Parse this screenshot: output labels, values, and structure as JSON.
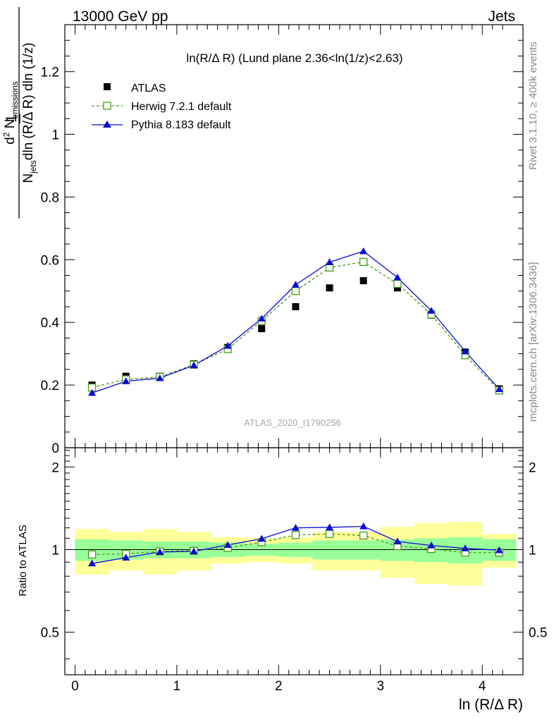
{
  "header": {
    "left": "13000 GeV pp",
    "right": "Jets"
  },
  "side_text": {
    "rivet": "Rivet 3.1.10, ≥ 400k events",
    "mcplots": "mcplots.cern.ch [arXiv:1306.3436]"
  },
  "colors": {
    "atlas": "#000000",
    "herwig": "#4a9a1a",
    "pythia": "#0a0ad8",
    "band_inner": "#99ff99",
    "band_outer": "#ffff99"
  },
  "chart_data": [
    {
      "type": "scatter",
      "panel": "main",
      "title": "ln(R/Δ R) (Lund plane 2.36<ln(1/z)<2.63)",
      "ylabel": "1/N_jets d²N_emissions / dln(R/ΔR) dln(1/z)",
      "ylabel_parts": {
        "frac_num": "1",
        "num_lead": "d",
        "num_sup": "2",
        "num_main": " N",
        "num_sub": "emissions",
        "den_main_a": "N",
        "den_sub": "jets",
        "den_main_b": "dln (R/Δ R) dln (1/z)"
      },
      "watermark": "ATLAS_2020_I1790256",
      "xlim": [
        -0.1,
        4.4
      ],
      "ylim": [
        0,
        1.35
      ],
      "yticks": [
        0,
        0.2,
        0.4,
        0.6,
        0.8,
        1,
        1.2
      ],
      "ytick_labels": [
        "0",
        "0.2",
        "0.4",
        "0.6",
        "0.8",
        "1",
        "1.2"
      ],
      "legend": [
        {
          "key": "atlas",
          "label": "ATLAS"
        },
        {
          "key": "herwig",
          "label": "Herwig 7.2.1 default"
        },
        {
          "key": "pythia",
          "label": "Pythia 8.183 default"
        }
      ],
      "x": [
        0.167,
        0.5,
        0.833,
        1.167,
        1.5,
        1.833,
        2.167,
        2.5,
        2.833,
        3.167,
        3.5,
        3.833,
        4.167
      ],
      "series": [
        {
          "name": "ATLAS",
          "values": [
            0.2,
            0.228,
            0.228,
            0.268,
            0.32,
            0.38,
            0.45,
            0.51,
            0.533,
            0.51,
            0.423,
            0.305,
            0.188
          ]
        },
        {
          "name": "Herwig 7.2.1 default",
          "values": [
            0.192,
            0.218,
            0.226,
            0.265,
            0.315,
            0.405,
            0.5,
            0.575,
            0.593,
            0.523,
            0.425,
            0.295,
            0.183
          ]
        },
        {
          "name": "Pythia 8.183 default",
          "values": [
            0.175,
            0.212,
            0.222,
            0.263,
            0.325,
            0.412,
            0.52,
            0.592,
            0.627,
            0.543,
            0.437,
            0.307,
            0.187
          ]
        }
      ]
    },
    {
      "type": "line",
      "panel": "ratio",
      "ylabel": "Ratio to ATLAS",
      "xlabel": "ln (R/Δ R)",
      "xlim": [
        -0.1,
        4.4
      ],
      "ylim": [
        0.35,
        2.35
      ],
      "xticks": [
        0,
        1,
        2,
        3,
        4
      ],
      "xtick_labels": [
        "0",
        "1",
        "2",
        "3",
        "4"
      ],
      "yticks": [
        0.5,
        1,
        2
      ],
      "ytick_labels": [
        "0.5",
        "1",
        "2"
      ],
      "reference_line": 1,
      "bin_edges": [
        0,
        0.333,
        0.667,
        1,
        1.333,
        1.667,
        2,
        2.333,
        2.667,
        3,
        3.333,
        3.667,
        4,
        4.333
      ],
      "band_inner": [
        [
          0.91,
          1.09
        ],
        [
          0.92,
          1.08
        ],
        [
          0.93,
          1.07
        ],
        [
          0.93,
          1.07
        ],
        [
          0.94,
          1.06
        ],
        [
          0.95,
          1.05
        ],
        [
          0.94,
          1.06
        ],
        [
          0.92,
          1.08
        ],
        [
          0.92,
          1.08
        ],
        [
          0.91,
          1.09
        ],
        [
          0.9,
          1.1
        ],
        [
          0.89,
          1.11
        ],
        [
          0.91,
          1.09
        ]
      ],
      "band_outer": [
        [
          0.81,
          1.19
        ],
        [
          0.84,
          1.16
        ],
        [
          0.81,
          1.19
        ],
        [
          0.84,
          1.16
        ],
        [
          0.89,
          1.11
        ],
        [
          0.9,
          1.1
        ],
        [
          0.89,
          1.11
        ],
        [
          0.84,
          1.16
        ],
        [
          0.84,
          1.16
        ],
        [
          0.79,
          1.21
        ],
        [
          0.75,
          1.25
        ],
        [
          0.74,
          1.26
        ],
        [
          0.86,
          1.14
        ]
      ],
      "x": [
        0.167,
        0.5,
        0.833,
        1.167,
        1.5,
        1.833,
        2.167,
        2.5,
        2.833,
        3.167,
        3.5,
        3.833,
        4.167
      ],
      "series": [
        {
          "name": "Herwig 7.2.1 default",
          "values": [
            0.96,
            0.965,
            0.985,
            0.99,
            1.015,
            1.065,
            1.13,
            1.14,
            1.125,
            1.03,
            1.005,
            0.975,
            0.975
          ]
        },
        {
          "name": "Pythia 8.183 default",
          "values": [
            0.89,
            0.935,
            0.98,
            0.985,
            1.04,
            1.095,
            1.2,
            1.205,
            1.215,
            1.07,
            1.035,
            1.01,
            0.995
          ]
        }
      ]
    }
  ]
}
